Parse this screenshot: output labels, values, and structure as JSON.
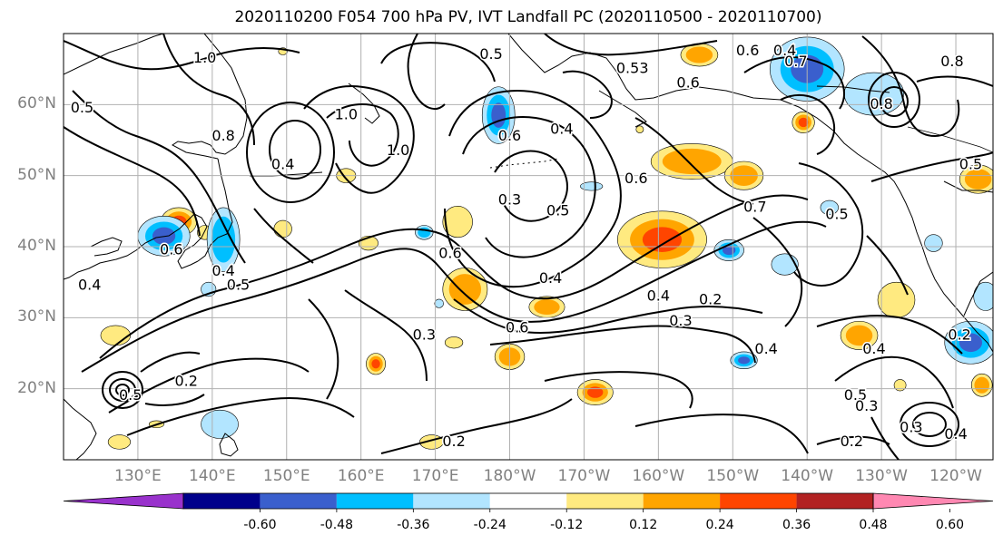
{
  "title": "2020110200 F054 700 hPa PV, IVT Landfall PC (2020110500 - 2020110700)",
  "map": {
    "lat_labels": [
      "60°N",
      "50°N",
      "40°N",
      "30°N",
      "20°N"
    ],
    "lat_values": [
      60,
      50,
      40,
      30,
      20
    ],
    "lon_labels": [
      "130°E",
      "140°E",
      "150°E",
      "160°E",
      "170°E",
      "180°W",
      "170°W",
      "160°W",
      "150°W",
      "140°W",
      "130°W",
      "120°W"
    ],
    "lon_values": [
      130,
      140,
      150,
      160,
      170,
      180,
      190,
      200,
      210,
      220,
      230,
      240
    ],
    "extent": {
      "lon_min": 120,
      "lon_max": 245,
      "lat_min": 10,
      "lat_max": 70
    },
    "contour_labels": [
      {
        "text": "1.0",
        "lon": 139,
        "lat": 66.5
      },
      {
        "text": "0.5",
        "lon": 122.5,
        "lat": 59.5
      },
      {
        "text": "0.8",
        "lon": 141.5,
        "lat": 55.5
      },
      {
        "text": "0.4",
        "lon": 149.5,
        "lat": 51.5
      },
      {
        "text": "1.0",
        "lon": 158,
        "lat": 58.5
      },
      {
        "text": "1.0",
        "lon": 165,
        "lat": 53.5
      },
      {
        "text": "0.6",
        "lon": 134.5,
        "lat": 39.5
      },
      {
        "text": "0.4",
        "lon": 141.5,
        "lat": 36.5
      },
      {
        "text": "0.5",
        "lon": 143.5,
        "lat": 34.5
      },
      {
        "text": "0.4",
        "lon": 123.5,
        "lat": 34.5
      },
      {
        "text": "0.2",
        "lon": 136.5,
        "lat": 21
      },
      {
        "text": "0.5",
        "lon": 129,
        "lat": 19
      },
      {
        "text": "0.5",
        "lon": 177.5,
        "lat": 67
      },
      {
        "text": "0.6",
        "lon": 180,
        "lat": 55.5
      },
      {
        "text": "0.4",
        "lon": 187,
        "lat": 56.5
      },
      {
        "text": "0.53",
        "lon": 196.5,
        "lat": 65
      },
      {
        "text": "0.6",
        "lon": 204,
        "lat": 63
      },
      {
        "text": "0.6",
        "lon": 212,
        "lat": 67.5
      },
      {
        "text": "0.6",
        "lon": 197,
        "lat": 49.5
      },
      {
        "text": "0.3",
        "lon": 180,
        "lat": 46.5
      },
      {
        "text": "0.5",
        "lon": 186.5,
        "lat": 45
      },
      {
        "text": "0.6",
        "lon": 172,
        "lat": 39
      },
      {
        "text": "0.4",
        "lon": 185.5,
        "lat": 35.5
      },
      {
        "text": "0.6",
        "lon": 181,
        "lat": 28.5
      },
      {
        "text": "0.3",
        "lon": 168.5,
        "lat": 27.5
      },
      {
        "text": "0.4",
        "lon": 200,
        "lat": 33
      },
      {
        "text": "0.2",
        "lon": 207,
        "lat": 32.5
      },
      {
        "text": "0.3",
        "lon": 203,
        "lat": 29.5
      },
      {
        "text": "0.7",
        "lon": 213,
        "lat": 45.5
      },
      {
        "text": "0.5",
        "lon": 224,
        "lat": 44.5
      },
      {
        "text": "0.4",
        "lon": 214.5,
        "lat": 25.5
      },
      {
        "text": "0.4",
        "lon": 229,
        "lat": 25.5
      },
      {
        "text": "0.5",
        "lon": 226.5,
        "lat": 19
      },
      {
        "text": "0.3",
        "lon": 228,
        "lat": 17.5
      },
      {
        "text": "0.2",
        "lon": 226,
        "lat": 12.5
      },
      {
        "text": "0.3",
        "lon": 234,
        "lat": 14.5
      },
      {
        "text": "0.4",
        "lon": 240,
        "lat": 13.5
      },
      {
        "text": "0.2",
        "lon": 240.5,
        "lat": 27.5
      },
      {
        "text": "0.2",
        "lon": 172.5,
        "lat": 12.5
      },
      {
        "text": "0.8",
        "lon": 230,
        "lat": 60
      },
      {
        "text": "0.5",
        "lon": 242,
        "lat": 51.5
      },
      {
        "text": "0.8",
        "lon": 239.5,
        "lat": 66
      },
      {
        "text": "0.4",
        "lon": 217,
        "lat": 67.5
      },
      {
        "text": "0.7",
        "lon": 218.5,
        "lat": 66
      }
    ],
    "positive_regions": [
      {
        "lon": 149.5,
        "lat": 67.5,
        "rlon": 0.6,
        "rlat": 0.5,
        "level": 1
      },
      {
        "lon": 135.5,
        "lat": 43.5,
        "rlon": 2.4,
        "rlat": 2,
        "level": 3
      },
      {
        "lon": 139,
        "lat": 42,
        "rlon": 1,
        "rlat": 1,
        "level": 1
      },
      {
        "lon": 149.5,
        "lat": 42.5,
        "rlon": 1.2,
        "rlat": 1.2,
        "level": 1
      },
      {
        "lon": 158,
        "lat": 50,
        "rlon": 1.3,
        "rlat": 1,
        "level": 1
      },
      {
        "lon": 161,
        "lat": 40.5,
        "rlon": 1.3,
        "rlat": 1,
        "level": 1
      },
      {
        "lon": 173,
        "lat": 43.5,
        "rlon": 2,
        "rlat": 2.2,
        "level": 1
      },
      {
        "lon": 174,
        "lat": 34,
        "rlon": 3,
        "rlat": 3,
        "level": 2
      },
      {
        "lon": 185,
        "lat": 31.5,
        "rlon": 2.4,
        "rlat": 1.5,
        "level": 2
      },
      {
        "lon": 180,
        "lat": 24.5,
        "rlon": 2,
        "rlat": 1.8,
        "level": 2
      },
      {
        "lon": 162,
        "lat": 23.5,
        "rlon": 1.3,
        "rlat": 1.5,
        "level": 3
      },
      {
        "lon": 172.5,
        "lat": 26.5,
        "rlon": 1.2,
        "rlat": 0.8,
        "level": 1
      },
      {
        "lon": 191.5,
        "lat": 19.5,
        "rlon": 2.4,
        "rlat": 1.8,
        "level": 3
      },
      {
        "lon": 169.5,
        "lat": 12.5,
        "rlon": 1.6,
        "rlat": 1,
        "level": 1
      },
      {
        "lon": 127,
        "lat": 27.5,
        "rlon": 2,
        "rlat": 1.4,
        "level": 1
      },
      {
        "lon": 127.5,
        "lat": 12.5,
        "rlon": 1.5,
        "rlat": 1,
        "level": 1
      },
      {
        "lon": 132.5,
        "lat": 15,
        "rlon": 1,
        "rlat": 0.5,
        "level": 1
      },
      {
        "lon": 200.5,
        "lat": 41,
        "rlon": 6,
        "rlat": 4,
        "level": 4
      },
      {
        "lon": 204.5,
        "lat": 52,
        "rlon": 5.5,
        "rlat": 2.5,
        "level": 2
      },
      {
        "lon": 211.5,
        "lat": 50,
        "rlon": 2.6,
        "rlat": 2,
        "level": 2
      },
      {
        "lon": 205.5,
        "lat": 67,
        "rlon": 2.5,
        "rlat": 1.6,
        "level": 2
      },
      {
        "lon": 219.5,
        "lat": 57.5,
        "rlon": 1.5,
        "rlat": 1.5,
        "level": 3
      },
      {
        "lon": 227,
        "lat": 27.5,
        "rlon": 2.5,
        "rlat": 2,
        "level": 2
      },
      {
        "lon": 232,
        "lat": 32.5,
        "rlon": 2.5,
        "rlat": 2.5,
        "level": 1
      },
      {
        "lon": 243,
        "lat": 49.5,
        "rlon": 2.5,
        "rlat": 2,
        "level": 2
      },
      {
        "lon": 243.5,
        "lat": 20.5,
        "rlon": 1.4,
        "rlat": 1.6,
        "level": 2
      },
      {
        "lon": 232.5,
        "lat": 20.5,
        "rlon": 0.8,
        "rlat": 0.8,
        "level": 1
      },
      {
        "lon": 197.5,
        "lat": 56.5,
        "rlon": 0.5,
        "rlat": 0.5,
        "level": 1
      }
    ],
    "negative_regions": [
      {
        "lon": 133.5,
        "lat": 41.5,
        "rlon": 3.5,
        "rlat": 2.8,
        "level": 3
      },
      {
        "lon": 141.5,
        "lat": 41,
        "rlon": 2.2,
        "rlat": 4.5,
        "level": 2
      },
      {
        "lon": 141,
        "lat": 15,
        "rlon": 2.5,
        "rlat": 2,
        "level": 1
      },
      {
        "lon": 178.5,
        "lat": 58.5,
        "rlon": 2.2,
        "rlat": 4,
        "level": 3
      },
      {
        "lon": 168.5,
        "lat": 42,
        "rlon": 1.2,
        "rlat": 1,
        "level": 2
      },
      {
        "lon": 209.5,
        "lat": 39.5,
        "rlon": 2,
        "rlat": 1.5,
        "level": 3
      },
      {
        "lon": 217,
        "lat": 37.5,
        "rlon": 1.8,
        "rlat": 1.5,
        "level": 1
      },
      {
        "lon": 223,
        "lat": 45.5,
        "rlon": 1.2,
        "rlat": 1,
        "level": 1
      },
      {
        "lon": 211.5,
        "lat": 24,
        "rlon": 1.8,
        "rlat": 1.2,
        "level": 3
      },
      {
        "lon": 220,
        "lat": 65,
        "rlon": 5,
        "rlat": 4.5,
        "level": 3
      },
      {
        "lon": 229,
        "lat": 61.5,
        "rlon": 4,
        "rlat": 3,
        "level": 1
      },
      {
        "lon": 242,
        "lat": 26.5,
        "rlon": 3.5,
        "rlat": 3,
        "level": 3
      },
      {
        "lon": 244,
        "lat": 33,
        "rlon": 1.6,
        "rlat": 2,
        "level": 1
      },
      {
        "lon": 237,
        "lat": 40.5,
        "rlon": 1.2,
        "rlat": 1.2,
        "level": 1
      },
      {
        "lon": 191,
        "lat": 48.5,
        "rlon": 1.5,
        "rlat": 0.6,
        "level": 1
      },
      {
        "lon": 139.5,
        "lat": 34,
        "rlon": 1,
        "rlat": 1,
        "level": 1
      },
      {
        "lon": 170.5,
        "lat": 32,
        "rlon": 0.6,
        "rlat": 0.6,
        "level": 1
      }
    ]
  },
  "colorbar": {
    "ticks": [
      "-0.60",
      "-0.48",
      "-0.36",
      "-0.24",
      "-0.12",
      "0.12",
      "0.24",
      "0.36",
      "0.48",
      "0.60"
    ],
    "colors": [
      "#9932cc",
      "#00008b",
      "#3a5fcd",
      "#00bfff",
      "#b2e5ff",
      "#ffffff",
      "#ffea80",
      "#ffa500",
      "#ff4500",
      "#b22222",
      "#ff88b2"
    ]
  }
}
